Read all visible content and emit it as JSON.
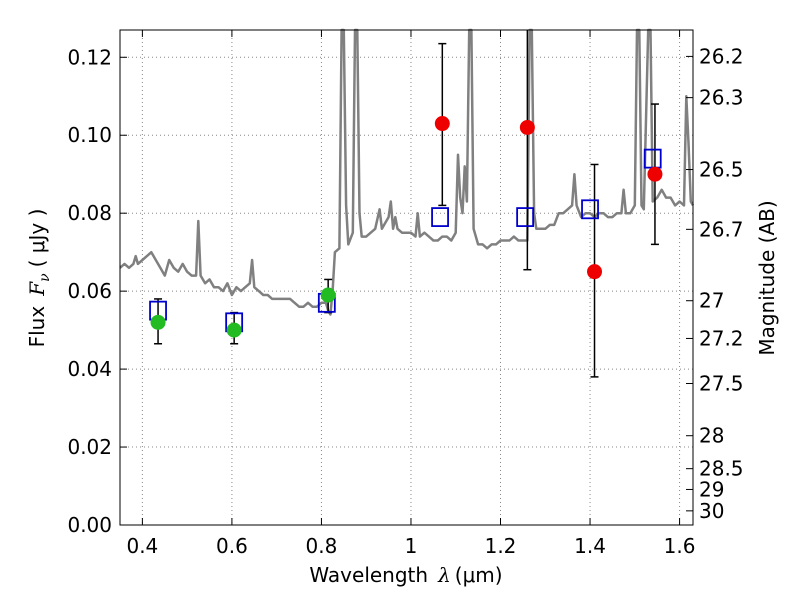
{
  "chart_data": {
    "type": "scatter",
    "xlabel": "Wavelength",
    "xlabel_symbol": "λ",
    "xlabel_unit": "(μm)",
    "ylabel": "Flux",
    "ylabel_symbol": "F",
    "ylabel_subscript": "ν",
    "ylabel_unit": "( μJy )",
    "y2label": "Magnitude (AB)",
    "xlim": [
      0.35,
      1.63
    ],
    "ylim": [
      0.0,
      0.127
    ],
    "grid": true,
    "x_ticks": [
      {
        "value": 0.4,
        "label": "0.4"
      },
      {
        "value": 0.6,
        "label": "0.6"
      },
      {
        "value": 0.8,
        "label": "0.8"
      },
      {
        "value": 1.0,
        "label": "1"
      },
      {
        "value": 1.2,
        "label": "1.2"
      },
      {
        "value": 1.4,
        "label": "1.4"
      },
      {
        "value": 1.6,
        "label": "1.6"
      }
    ],
    "y_ticks": [
      {
        "value": 0.0,
        "label": "0.00"
      },
      {
        "value": 0.02,
        "label": "0.02"
      },
      {
        "value": 0.04,
        "label": "0.04"
      },
      {
        "value": 0.06,
        "label": "0.06"
      },
      {
        "value": 0.08,
        "label": "0.08"
      },
      {
        "value": 0.1,
        "label": "0.10"
      },
      {
        "value": 0.12,
        "label": "0.12"
      }
    ],
    "y2_ticks": [
      {
        "value": 26.2,
        "label": "26.2"
      },
      {
        "value": 26.3,
        "label": "26.3"
      },
      {
        "value": 26.5,
        "label": "26.5"
      },
      {
        "value": 26.7,
        "label": "26.7"
      },
      {
        "value": 27.0,
        "label": "27"
      },
      {
        "value": 27.2,
        "label": "27.2"
      },
      {
        "value": 27.5,
        "label": "27.5"
      },
      {
        "value": 28.0,
        "label": "28"
      },
      {
        "value": 28.5,
        "label": "28.5"
      },
      {
        "value": 29.0,
        "label": "29"
      },
      {
        "value": 30.0,
        "label": "30"
      }
    ],
    "colors": {
      "spectrum": "#808080",
      "model": "#0000cc",
      "ground": "#22bb22",
      "hst": "#ee0000",
      "errorbar": "#000000",
      "grid": "#888888"
    },
    "spectrum": [
      [
        0.35,
        0.066
      ],
      [
        0.36,
        0.067
      ],
      [
        0.37,
        0.066
      ],
      [
        0.38,
        0.067
      ],
      [
        0.385,
        0.069
      ],
      [
        0.39,
        0.067
      ],
      [
        0.4,
        0.068
      ],
      [
        0.41,
        0.069
      ],
      [
        0.42,
        0.07
      ],
      [
        0.43,
        0.068
      ],
      [
        0.44,
        0.066
      ],
      [
        0.45,
        0.064
      ],
      [
        0.46,
        0.068
      ],
      [
        0.47,
        0.066
      ],
      [
        0.48,
        0.065
      ],
      [
        0.49,
        0.067
      ],
      [
        0.5,
        0.065
      ],
      [
        0.51,
        0.064
      ],
      [
        0.52,
        0.064
      ],
      [
        0.525,
        0.078
      ],
      [
        0.53,
        0.064
      ],
      [
        0.54,
        0.062
      ],
      [
        0.55,
        0.063
      ],
      [
        0.56,
        0.061
      ],
      [
        0.57,
        0.061
      ],
      [
        0.58,
        0.06
      ],
      [
        0.59,
        0.062
      ],
      [
        0.6,
        0.059
      ],
      [
        0.61,
        0.061
      ],
      [
        0.62,
        0.06
      ],
      [
        0.63,
        0.061
      ],
      [
        0.64,
        0.062
      ],
      [
        0.645,
        0.068
      ],
      [
        0.65,
        0.061
      ],
      [
        0.66,
        0.06
      ],
      [
        0.67,
        0.059
      ],
      [
        0.68,
        0.059
      ],
      [
        0.69,
        0.058
      ],
      [
        0.7,
        0.058
      ],
      [
        0.71,
        0.058
      ],
      [
        0.72,
        0.058
      ],
      [
        0.73,
        0.058
      ],
      [
        0.74,
        0.057
      ],
      [
        0.75,
        0.056
      ],
      [
        0.76,
        0.056
      ],
      [
        0.77,
        0.057
      ],
      [
        0.78,
        0.056
      ],
      [
        0.79,
        0.056
      ],
      [
        0.8,
        0.057
      ],
      [
        0.81,
        0.057
      ],
      [
        0.815,
        0.055
      ],
      [
        0.82,
        0.054
      ],
      [
        0.825,
        0.06
      ],
      [
        0.83,
        0.07
      ],
      [
        0.84,
        0.071
      ],
      [
        0.845,
        0.127
      ],
      [
        0.85,
        0.127
      ],
      [
        0.855,
        0.082
      ],
      [
        0.86,
        0.072
      ],
      [
        0.87,
        0.075
      ],
      [
        0.875,
        0.127
      ],
      [
        0.88,
        0.127
      ],
      [
        0.885,
        0.08
      ],
      [
        0.89,
        0.074
      ],
      [
        0.9,
        0.074
      ],
      [
        0.91,
        0.075
      ],
      [
        0.92,
        0.076
      ],
      [
        0.93,
        0.081
      ],
      [
        0.935,
        0.076
      ],
      [
        0.94,
        0.077
      ],
      [
        0.95,
        0.079
      ],
      [
        0.955,
        0.083
      ],
      [
        0.96,
        0.076
      ],
      [
        0.965,
        0.079
      ],
      [
        0.97,
        0.076
      ],
      [
        0.98,
        0.075
      ],
      [
        0.99,
        0.075
      ],
      [
        1.0,
        0.075
      ],
      [
        1.01,
        0.074
      ],
      [
        1.015,
        0.08
      ],
      [
        1.02,
        0.074
      ],
      [
        1.03,
        0.075
      ],
      [
        1.04,
        0.074
      ],
      [
        1.05,
        0.073
      ],
      [
        1.06,
        0.073
      ],
      [
        1.07,
        0.074
      ],
      [
        1.08,
        0.074
      ],
      [
        1.09,
        0.073
      ],
      [
        1.1,
        0.075
      ],
      [
        1.105,
        0.095
      ],
      [
        1.11,
        0.084
      ],
      [
        1.115,
        0.08
      ],
      [
        1.12,
        0.092
      ],
      [
        1.125,
        0.083
      ],
      [
        1.13,
        0.127
      ],
      [
        1.135,
        0.127
      ],
      [
        1.14,
        0.076
      ],
      [
        1.15,
        0.072
      ],
      [
        1.16,
        0.072
      ],
      [
        1.17,
        0.071
      ],
      [
        1.18,
        0.072
      ],
      [
        1.19,
        0.072
      ],
      [
        1.2,
        0.073
      ],
      [
        1.21,
        0.073
      ],
      [
        1.22,
        0.073
      ],
      [
        1.23,
        0.074
      ],
      [
        1.24,
        0.073
      ],
      [
        1.25,
        0.073
      ],
      [
        1.26,
        0.073
      ],
      [
        1.265,
        0.127
      ],
      [
        1.27,
        0.127
      ],
      [
        1.275,
        0.08
      ],
      [
        1.28,
        0.076
      ],
      [
        1.29,
        0.076
      ],
      [
        1.3,
        0.076
      ],
      [
        1.31,
        0.077
      ],
      [
        1.32,
        0.077
      ],
      [
        1.33,
        0.08
      ],
      [
        1.34,
        0.08
      ],
      [
        1.35,
        0.081
      ],
      [
        1.36,
        0.082
      ],
      [
        1.365,
        0.09
      ],
      [
        1.37,
        0.082
      ],
      [
        1.38,
        0.079
      ],
      [
        1.39,
        0.08
      ],
      [
        1.4,
        0.08
      ],
      [
        1.41,
        0.079
      ],
      [
        1.42,
        0.08
      ],
      [
        1.43,
        0.08
      ],
      [
        1.44,
        0.079
      ],
      [
        1.45,
        0.079
      ],
      [
        1.46,
        0.08
      ],
      [
        1.47,
        0.08
      ],
      [
        1.475,
        0.086
      ],
      [
        1.48,
        0.08
      ],
      [
        1.49,
        0.08
      ],
      [
        1.5,
        0.082
      ],
      [
        1.505,
        0.127
      ],
      [
        1.51,
        0.127
      ],
      [
        1.515,
        0.082
      ],
      [
        1.52,
        0.081
      ],
      [
        1.53,
        0.127
      ],
      [
        1.535,
        0.127
      ],
      [
        1.54,
        0.083
      ],
      [
        1.55,
        0.084
      ],
      [
        1.56,
        0.086
      ],
      [
        1.57,
        0.084
      ],
      [
        1.58,
        0.084
      ],
      [
        1.59,
        0.082
      ],
      [
        1.6,
        0.083
      ],
      [
        1.61,
        0.082
      ],
      [
        1.615,
        0.11
      ],
      [
        1.62,
        0.098
      ],
      [
        1.625,
        0.083
      ],
      [
        1.63,
        0.082
      ]
    ],
    "model_points": [
      {
        "x": 0.435,
        "y": 0.055
      },
      {
        "x": 0.605,
        "y": 0.052
      },
      {
        "x": 0.812,
        "y": 0.057
      },
      {
        "x": 1.065,
        "y": 0.079
      },
      {
        "x": 1.255,
        "y": 0.079
      },
      {
        "x": 1.4,
        "y": 0.081
      },
      {
        "x": 1.54,
        "y": 0.094
      }
    ],
    "ground_points": [
      {
        "x": 0.435,
        "y": 0.052,
        "err_low": 0.0465,
        "err_high": 0.058
      },
      {
        "x": 0.605,
        "y": 0.05,
        "err_low": 0.0465,
        "err_high": 0.0545
      },
      {
        "x": 0.815,
        "y": 0.059,
        "err_low": 0.0545,
        "err_high": 0.063
      }
    ],
    "hst_points": [
      {
        "x": 1.07,
        "y": 0.103,
        "err_low": 0.082,
        "err_high": 0.1235
      },
      {
        "x": 1.26,
        "y": 0.102,
        "err_low": 0.0655,
        "err_high": 0.127
      },
      {
        "x": 1.41,
        "y": 0.065,
        "err_low": 0.038,
        "err_high": 0.0925
      },
      {
        "x": 1.545,
        "y": 0.09,
        "err_low": 0.072,
        "err_high": 0.108
      }
    ]
  }
}
